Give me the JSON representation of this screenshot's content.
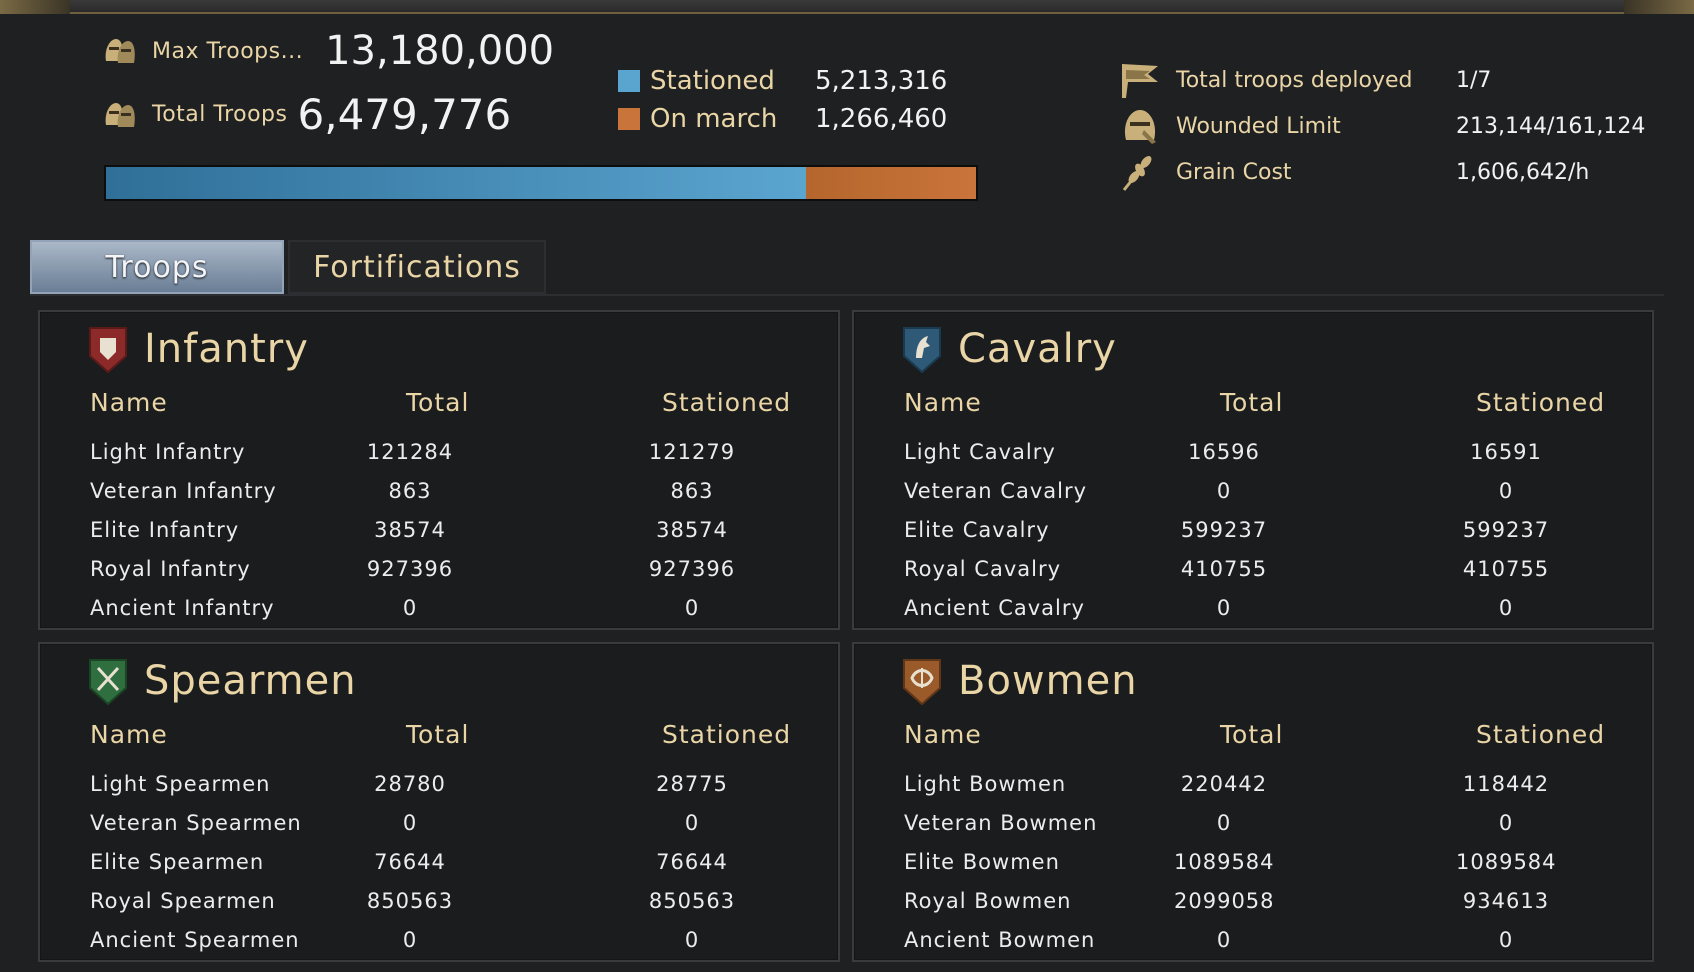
{
  "summary": {
    "max_troops_label": "Max Troops...",
    "max_troops_value": "13,180,000",
    "total_troops_label": "Total Troops",
    "total_troops_value": "6,479,776",
    "stationed_label": "Stationed",
    "stationed_value": "5,213,316",
    "on_march_label": "On march",
    "on_march_value": "1,266,460",
    "stationed_fraction": 0.805,
    "deployed_label": "Total troops deployed",
    "deployed_value": "1/7",
    "wounded_label": "Wounded Limit",
    "wounded_value": "213,144/161,124",
    "grain_label": "Grain Cost",
    "grain_value": "1,606,642/h"
  },
  "colors": {
    "stationed": "#5aa5d0",
    "on_march": "#c9743a",
    "gold_text": "#e9d5a6"
  },
  "tabs": [
    {
      "label": "Troops",
      "active": true
    },
    {
      "label": "Fortifications",
      "active": false
    }
  ],
  "columns": {
    "name": "Name",
    "total": "Total",
    "stationed": "Stationed"
  },
  "panels": {
    "infantry": {
      "title": "Infantry",
      "icon": "shield-icon",
      "rows": [
        {
          "name": "Light Infantry",
          "total": "121284",
          "stationed": "121279"
        },
        {
          "name": "Veteran Infantry",
          "total": "863",
          "stationed": "863"
        },
        {
          "name": "Elite Infantry",
          "total": "38574",
          "stationed": "38574"
        },
        {
          "name": "Royal Infantry",
          "total": "927396",
          "stationed": "927396"
        },
        {
          "name": "Ancient Infantry",
          "total": "0",
          "stationed": "0"
        }
      ]
    },
    "cavalry": {
      "title": "Cavalry",
      "icon": "horse-icon",
      "rows": [
        {
          "name": "Light Cavalry",
          "total": "16596",
          "stationed": "16591"
        },
        {
          "name": "Veteran Cavalry",
          "total": "0",
          "stationed": "0"
        },
        {
          "name": "Elite Cavalry",
          "total": "599237",
          "stationed": "599237"
        },
        {
          "name": "Royal Cavalry",
          "total": "410755",
          "stationed": "410755"
        },
        {
          "name": "Ancient Cavalry",
          "total": "0",
          "stationed": "0"
        }
      ]
    },
    "spearmen": {
      "title": "Spearmen",
      "icon": "crossed-spears-icon",
      "rows": [
        {
          "name": "Light Spearmen",
          "total": "28780",
          "stationed": "28775"
        },
        {
          "name": "Veteran Spearmen",
          "total": "0",
          "stationed": "0"
        },
        {
          "name": "Elite Spearmen",
          "total": "76644",
          "stationed": "76644"
        },
        {
          "name": "Royal Spearmen",
          "total": "850563",
          "stationed": "850563"
        },
        {
          "name": "Ancient Spearmen",
          "total": "0",
          "stationed": "0"
        }
      ]
    },
    "bowmen": {
      "title": "Bowmen",
      "icon": "bow-icon",
      "rows": [
        {
          "name": "Light Bowmen",
          "total": "220442",
          "stationed": "118442"
        },
        {
          "name": "Veteran Bowmen",
          "total": "0",
          "stationed": "0"
        },
        {
          "name": "Elite Bowmen",
          "total": "1089584",
          "stationed": "1089584"
        },
        {
          "name": "Royal Bowmen",
          "total": "2099058",
          "stationed": "934613"
        },
        {
          "name": "Ancient Bowmen",
          "total": "0",
          "stationed": "0"
        }
      ]
    }
  }
}
